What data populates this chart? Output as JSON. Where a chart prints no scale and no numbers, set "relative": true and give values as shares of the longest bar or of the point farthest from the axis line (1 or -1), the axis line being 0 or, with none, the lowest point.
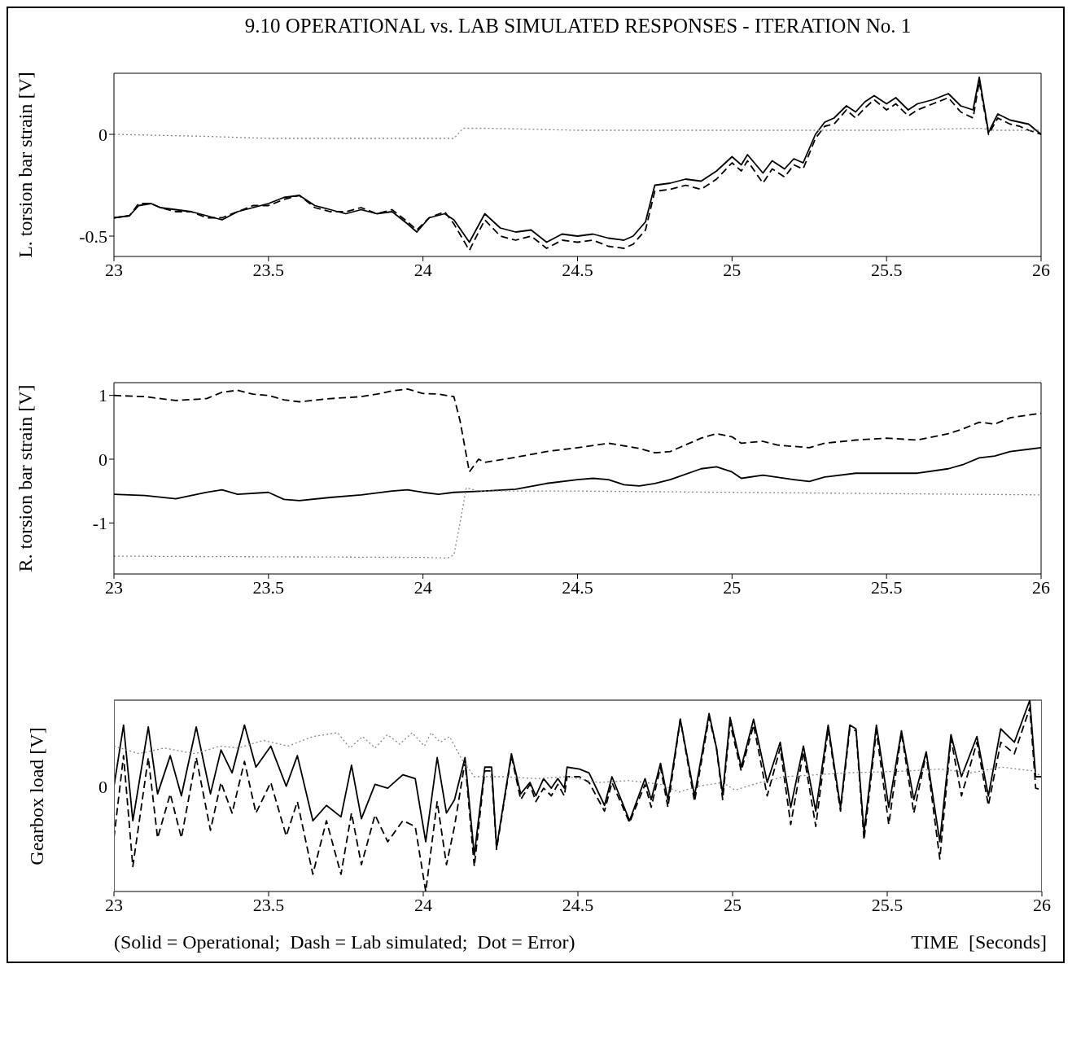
{
  "chart_data": [
    {
      "type": "line",
      "title": "9.10 OPERATIONAL vs. LAB SIMULATED RESPONSES - ITERATION No. 1",
      "ylabel": "L. torsion bar strain [V]",
      "xlim": [
        23,
        26
      ],
      "xticks": [
        23,
        23.5,
        24,
        24.5,
        25,
        25.5,
        26
      ],
      "ylim": [
        -0.6,
        0.3
      ],
      "yticks": [
        -0.5,
        0
      ],
      "grid": false,
      "x": [
        23.0,
        23.05,
        23.08,
        23.12,
        23.15,
        23.2,
        23.25,
        23.3,
        23.35,
        23.4,
        23.45,
        23.5,
        23.55,
        23.6,
        23.65,
        23.7,
        23.75,
        23.8,
        23.85,
        23.9,
        23.95,
        23.98,
        24.02,
        24.07,
        24.1,
        24.15,
        24.2,
        24.25,
        24.3,
        24.35,
        24.4,
        24.45,
        24.5,
        24.55,
        24.6,
        24.65,
        24.68,
        24.72,
        24.75,
        24.8,
        24.85,
        24.9,
        24.95,
        25.0,
        25.03,
        25.05,
        25.1,
        25.13,
        25.17,
        25.2,
        25.23,
        25.27,
        25.3,
        25.33,
        25.37,
        25.4,
        25.43,
        25.46,
        25.5,
        25.53,
        25.57,
        25.6,
        25.65,
        25.7,
        25.74,
        25.78,
        25.8,
        25.83,
        25.86,
        25.9,
        25.93,
        25.96,
        26.0
      ],
      "series": [
        {
          "color": "#000000",
          "line_style": "solid",
          "values": [
            -0.41,
            -0.4,
            -0.35,
            -0.34,
            -0.36,
            -0.37,
            -0.38,
            -0.4,
            -0.42,
            -0.38,
            -0.36,
            -0.34,
            -0.31,
            -0.3,
            -0.35,
            -0.37,
            -0.39,
            -0.37,
            -0.39,
            -0.38,
            -0.44,
            -0.48,
            -0.41,
            -0.39,
            -0.42,
            -0.53,
            -0.39,
            -0.46,
            -0.48,
            -0.47,
            -0.53,
            -0.49,
            -0.5,
            -0.49,
            -0.51,
            -0.52,
            -0.5,
            -0.43,
            -0.25,
            -0.24,
            -0.22,
            -0.23,
            -0.18,
            -0.11,
            -0.15,
            -0.1,
            -0.19,
            -0.13,
            -0.17,
            -0.12,
            -0.14,
            0.0,
            0.06,
            0.08,
            0.14,
            0.11,
            0.16,
            0.19,
            0.15,
            0.18,
            0.12,
            0.15,
            0.17,
            0.2,
            0.14,
            0.12,
            0.28,
            0.01,
            0.1,
            0.07,
            0.06,
            0.05,
            0.0
          ]
        },
        {
          "color": "#000000",
          "line_style": "dashed",
          "values": [
            -0.41,
            -0.4,
            -0.34,
            -0.34,
            -0.36,
            -0.38,
            -0.38,
            -0.41,
            -0.41,
            -0.38,
            -0.35,
            -0.35,
            -0.32,
            -0.3,
            -0.36,
            -0.38,
            -0.38,
            -0.36,
            -0.39,
            -0.37,
            -0.43,
            -0.47,
            -0.41,
            -0.38,
            -0.44,
            -0.57,
            -0.42,
            -0.5,
            -0.52,
            -0.5,
            -0.56,
            -0.52,
            -0.53,
            -0.52,
            -0.55,
            -0.56,
            -0.54,
            -0.47,
            -0.28,
            -0.27,
            -0.25,
            -0.27,
            -0.22,
            -0.14,
            -0.18,
            -0.13,
            -0.24,
            -0.17,
            -0.21,
            -0.15,
            -0.17,
            -0.02,
            0.04,
            0.05,
            0.12,
            0.08,
            0.13,
            0.17,
            0.12,
            0.15,
            0.09,
            0.12,
            0.15,
            0.18,
            0.11,
            0.08,
            0.26,
            0.0,
            0.08,
            0.05,
            0.04,
            0.02,
            0.0
          ]
        },
        {
          "color": "#888888",
          "line_style": "dotted",
          "x": [
            23.0,
            23.3,
            23.5,
            23.8,
            24.0,
            24.1,
            24.13,
            24.2,
            24.5,
            25.0,
            25.5,
            25.8,
            25.85,
            26.0
          ],
          "values": [
            0.0,
            -0.01,
            -0.02,
            -0.02,
            -0.02,
            -0.02,
            0.03,
            0.03,
            0.02,
            0.02,
            0.02,
            0.03,
            0.02,
            0.02
          ]
        }
      ]
    },
    {
      "type": "line",
      "ylabel": "R. torsion bar strain [V]",
      "xlim": [
        23,
        26
      ],
      "xticks": [
        23,
        23.5,
        24,
        24.5,
        25,
        25.5,
        26
      ],
      "ylim": [
        -1.8,
        1.2
      ],
      "yticks": [
        -1,
        0,
        1
      ],
      "grid": false,
      "series": [
        {
          "color": "#000000",
          "line_style": "solid",
          "x": [
            23.0,
            23.1,
            23.2,
            23.3,
            23.35,
            23.4,
            23.5,
            23.55,
            23.6,
            23.7,
            23.8,
            23.9,
            23.95,
            24.0,
            24.05,
            24.1,
            24.2,
            24.3,
            24.4,
            24.5,
            24.55,
            24.6,
            24.65,
            24.7,
            24.75,
            24.8,
            24.9,
            24.95,
            25.0,
            25.03,
            25.1,
            25.2,
            25.25,
            25.3,
            25.4,
            25.5,
            25.6,
            25.7,
            25.75,
            25.8,
            25.85,
            25.9,
            26.0
          ],
          "values": [
            -0.55,
            -0.57,
            -0.62,
            -0.52,
            -0.48,
            -0.55,
            -0.52,
            -0.63,
            -0.65,
            -0.6,
            -0.56,
            -0.5,
            -0.48,
            -0.52,
            -0.55,
            -0.52,
            -0.5,
            -0.47,
            -0.38,
            -0.32,
            -0.3,
            -0.32,
            -0.4,
            -0.42,
            -0.38,
            -0.32,
            -0.15,
            -0.12,
            -0.2,
            -0.3,
            -0.25,
            -0.32,
            -0.35,
            -0.28,
            -0.22,
            -0.22,
            -0.22,
            -0.15,
            -0.08,
            0.02,
            0.05,
            0.12,
            0.18
          ]
        },
        {
          "color": "#000000",
          "line_style": "dashed",
          "x": [
            23.0,
            23.1,
            23.2,
            23.3,
            23.35,
            23.4,
            23.45,
            23.5,
            23.55,
            23.6,
            23.7,
            23.8,
            23.85,
            23.9,
            23.95,
            24.0,
            24.05,
            24.1,
            24.12,
            24.15,
            24.18,
            24.2,
            24.3,
            24.4,
            24.5,
            24.6,
            24.7,
            24.75,
            24.8,
            24.9,
            24.95,
            25.0,
            25.03,
            25.1,
            25.15,
            25.2,
            25.25,
            25.3,
            25.4,
            25.5,
            25.6,
            25.7,
            25.75,
            25.8,
            25.85,
            25.9,
            26.0
          ],
          "values": [
            1.0,
            0.98,
            0.92,
            0.95,
            1.05,
            1.08,
            1.02,
            1.0,
            0.93,
            0.9,
            0.95,
            0.98,
            1.02,
            1.07,
            1.1,
            1.03,
            1.02,
            0.98,
            0.6,
            -0.2,
            0.0,
            -0.05,
            0.03,
            0.12,
            0.18,
            0.25,
            0.17,
            0.1,
            0.12,
            0.33,
            0.4,
            0.35,
            0.25,
            0.28,
            0.22,
            0.2,
            0.18,
            0.25,
            0.3,
            0.33,
            0.3,
            0.4,
            0.48,
            0.58,
            0.55,
            0.65,
            0.72
          ]
        },
        {
          "color": "#888888",
          "line_style": "dotted",
          "x": [
            23.0,
            24.0,
            24.08,
            24.1,
            24.12,
            24.14,
            24.18,
            24.3,
            24.5,
            25.0,
            25.5,
            26.0
          ],
          "values": [
            -1.52,
            -1.54,
            -1.55,
            -1.5,
            -1.0,
            -0.45,
            -0.5,
            -0.5,
            -0.5,
            -0.52,
            -0.54,
            -0.56
          ]
        }
      ]
    },
    {
      "type": "line",
      "relative": true,
      "ylabel": "Gearbox load [V]",
      "xlabel": "TIME  [Seconds]",
      "xlim": [
        23,
        26
      ],
      "xticks": [
        23,
        23.5,
        24,
        24.5,
        25,
        25.5,
        26
      ],
      "grid": false,
      "annotations": [
        "(Solid = Operational;  Dash = Lab simulated;  Dot = Error)",
        "0"
      ],
      "x": [
        23.0,
        23.031,
        23.061,
        23.111,
        23.141,
        23.182,
        23.218,
        23.266,
        23.312,
        23.346,
        23.382,
        23.422,
        23.459,
        23.507,
        23.557,
        23.593,
        23.643,
        23.687,
        23.734,
        23.768,
        23.8,
        23.844,
        23.885,
        23.934,
        23.974,
        24.008,
        24.045,
        24.075,
        24.101,
        24.135,
        24.165,
        24.199,
        24.221,
        24.237,
        24.285,
        24.315,
        24.345,
        24.364,
        24.389,
        24.414,
        24.435,
        24.456,
        24.465,
        24.505,
        24.536,
        24.586,
        24.61,
        24.667,
        24.717,
        24.737,
        24.767,
        24.791,
        24.831,
        24.877,
        24.924,
        24.948,
        24.968,
        24.992,
        25.028,
        25.068,
        25.112,
        25.154,
        25.188,
        25.229,
        25.269,
        25.309,
        25.349,
        25.379,
        25.399,
        25.425,
        25.465,
        25.505,
        25.546,
        25.586,
        25.626,
        25.67,
        25.706,
        25.74,
        25.79,
        25.827,
        25.867,
        25.911,
        25.961,
        25.98,
        26.0
      ],
      "series": [
        {
          "color": "#000000",
          "line_style": "solid",
          "values": [
            0.55,
            0.87,
            0.37,
            0.86,
            0.51,
            0.71,
            0.5,
            0.86,
            0.51,
            0.74,
            0.62,
            0.87,
            0.65,
            0.76,
            0.55,
            0.71,
            0.37,
            0.45,
            0.39,
            0.66,
            0.38,
            0.56,
            0.54,
            0.61,
            0.59,
            0.26,
            0.7,
            0.41,
            0.48,
            0.7,
            0.19,
            0.65,
            0.65,
            0.23,
            0.72,
            0.51,
            0.57,
            0.5,
            0.59,
            0.54,
            0.59,
            0.54,
            0.65,
            0.64,
            0.62,
            0.45,
            0.6,
            0.37,
            0.59,
            0.48,
            0.67,
            0.48,
            0.9,
            0.5,
            0.93,
            0.75,
            0.51,
            0.91,
            0.65,
            0.9,
            0.57,
            0.78,
            0.44,
            0.76,
            0.42,
            0.87,
            0.44,
            0.87,
            0.85,
            0.31,
            0.87,
            0.44,
            0.84,
            0.48,
            0.73,
            0.26,
            0.82,
            0.6,
            0.81,
            0.5,
            0.85,
            0.78,
            1.0,
            0.6,
            0.6
          ]
        },
        {
          "color": "#000000",
          "line_style": "dashed",
          "values": [
            0.28,
            0.71,
            0.13,
            0.7,
            0.28,
            0.51,
            0.28,
            0.7,
            0.32,
            0.57,
            0.41,
            0.68,
            0.41,
            0.57,
            0.29,
            0.47,
            0.09,
            0.37,
            0.09,
            0.41,
            0.14,
            0.4,
            0.26,
            0.37,
            0.34,
            0.0,
            0.47,
            0.14,
            0.34,
            0.68,
            0.13,
            0.63,
            0.63,
            0.22,
            0.71,
            0.48,
            0.56,
            0.47,
            0.54,
            0.5,
            0.56,
            0.5,
            0.6,
            0.6,
            0.57,
            0.42,
            0.57,
            0.36,
            0.56,
            0.44,
            0.65,
            0.44,
            0.9,
            0.47,
            0.91,
            0.75,
            0.48,
            0.88,
            0.63,
            0.87,
            0.5,
            0.75,
            0.35,
            0.73,
            0.34,
            0.85,
            0.42,
            0.85,
            0.84,
            0.27,
            0.84,
            0.35,
            0.83,
            0.41,
            0.72,
            0.17,
            0.8,
            0.5,
            0.78,
            0.45,
            0.78,
            0.72,
            0.96,
            0.54,
            0.53
          ]
        },
        {
          "color": "#888888",
          "line_style": "dotted",
          "x": [
            23.0,
            23.081,
            23.162,
            23.262,
            23.342,
            23.402,
            23.483,
            23.563,
            23.643,
            23.723,
            23.763,
            23.804,
            23.844,
            23.884,
            23.924,
            23.964,
            24.004,
            24.025,
            24.055,
            24.085,
            24.125,
            24.165,
            24.265,
            24.366,
            24.466,
            24.567,
            24.667,
            24.767,
            24.827,
            24.887,
            24.968,
            25.008,
            25.088,
            25.168,
            25.369,
            25.57,
            25.67,
            25.77,
            25.871,
            25.971,
            26.0
          ],
          "values": [
            0.76,
            0.72,
            0.75,
            0.72,
            0.76,
            0.75,
            0.79,
            0.76,
            0.81,
            0.83,
            0.75,
            0.81,
            0.75,
            0.82,
            0.77,
            0.83,
            0.76,
            0.83,
            0.78,
            0.81,
            0.69,
            0.6,
            0.6,
            0.59,
            0.6,
            0.57,
            0.58,
            0.56,
            0.52,
            0.55,
            0.57,
            0.53,
            0.57,
            0.6,
            0.62,
            0.63,
            0.64,
            0.62,
            0.65,
            0.63,
            0.6
          ]
        }
      ]
    }
  ]
}
